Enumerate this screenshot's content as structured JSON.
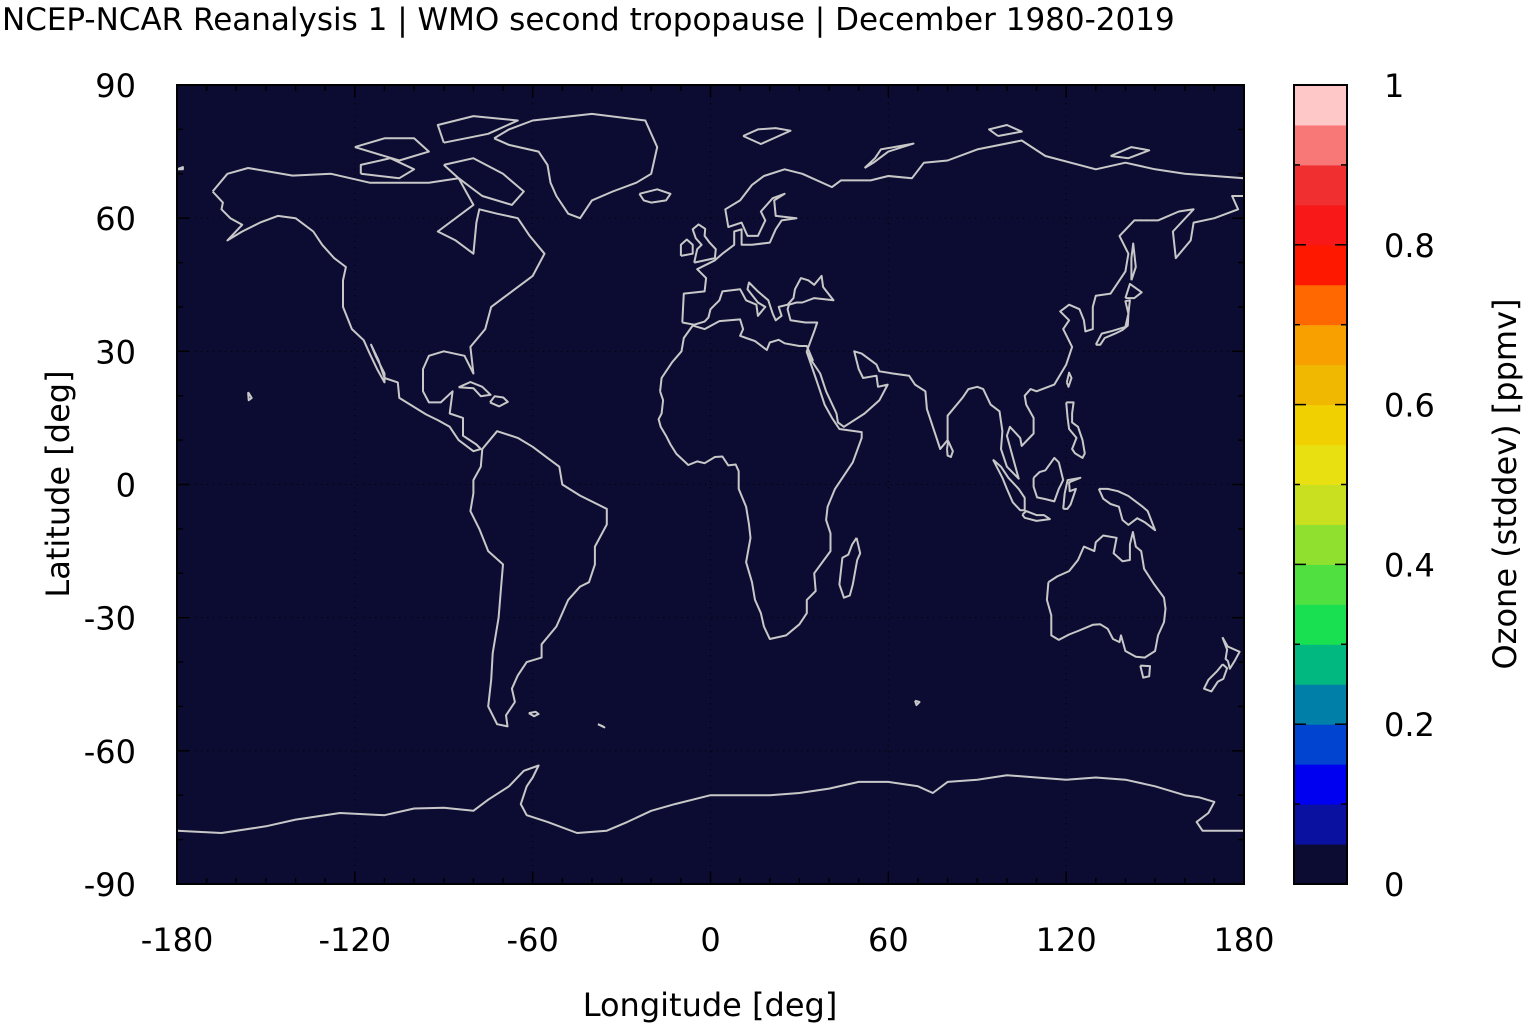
{
  "title": "NCEP-NCAR Reanalysis 1 | WMO second tropopause | December 1980-2019",
  "colors": {
    "background": "#0c0c33",
    "coastline": "#c8c8c8",
    "frame": "#000000"
  },
  "chart_data": {
    "type": "heatmap",
    "title": "NCEP-NCAR Reanalysis 1 | WMO second tropopause | December 1980-2019",
    "xlabel": "Longitude [deg]",
    "ylabel": "Latitude [deg]",
    "xlim": [
      -180,
      180
    ],
    "ylim": [
      -90,
      90
    ],
    "x_ticks": [
      "-180",
      "-120",
      "-60",
      "0",
      "60",
      "120",
      "180"
    ],
    "y_ticks": [
      "90",
      "60",
      "30",
      "0",
      "-30",
      "-60",
      "-90"
    ],
    "field_value_everywhere": 0,
    "colorbar": {
      "label": "Ozone (stddev) [ppmv]",
      "range": [
        0,
        1
      ],
      "ticks": [
        "0",
        "0.2",
        "0.4",
        "0.6",
        "0.8",
        "1"
      ],
      "colors": [
        "#0c0c33",
        "#0a10a0",
        "#0000f0",
        "#0044d0",
        "#0080a8",
        "#00b880",
        "#18e050",
        "#50e040",
        "#90e030",
        "#c8e020",
        "#e8e010",
        "#f0d000",
        "#f0b800",
        "#f8a000",
        "#ff6800",
        "#ff1800",
        "#f81818",
        "#f03030",
        "#f87878",
        "#ffc8c8"
      ]
    }
  }
}
